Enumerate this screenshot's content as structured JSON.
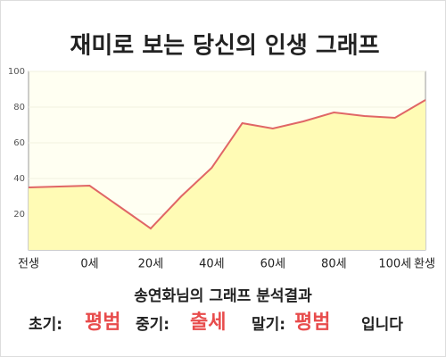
{
  "chart_data": {
    "type": "area",
    "title": "재미로 보는 당신의 인생 그래프",
    "categories": [
      "전생",
      null,
      "0세",
      null,
      "20세",
      null,
      "40세",
      null,
      "60세",
      null,
      "80세",
      null,
      "100세",
      "환생"
    ],
    "values": [
      35,
      35.5,
      36,
      24,
      12,
      30,
      46,
      71,
      68,
      72,
      77,
      75,
      74,
      84
    ],
    "color": "#e06666",
    "fill": "#fffbb5",
    "ylim": [
      0,
      100
    ],
    "yticks": [
      20,
      40,
      60,
      80,
      100
    ],
    "grid": true
  },
  "result": {
    "heading": "송연화님의 그래프 분석결과",
    "items": [
      {
        "label": "초기:",
        "value": "평범"
      },
      {
        "label": "중기:",
        "value": "출세"
      },
      {
        "label": "말기:",
        "value": "평범"
      }
    ],
    "suffix": "입니다"
  }
}
